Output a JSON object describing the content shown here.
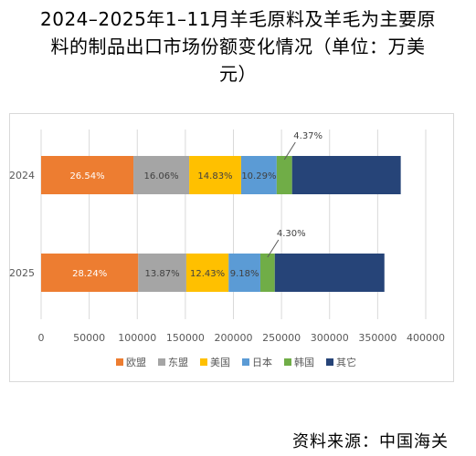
{
  "page": {
    "title_line1": "2024–2025年1–11月羊毛原料及羊毛为主要原",
    "title_line2": "料的制品出口市场份额变化情况（单位：万美",
    "title_line3": "元）",
    "source": "资料来源：中国海关"
  },
  "chart_data": {
    "type": "bar",
    "orientation": "horizontal",
    "stacked": true,
    "title": "",
    "xlabel": "",
    "ylabel": "",
    "xlim": [
      0,
      400000
    ],
    "x_ticks": [
      "0",
      "50000",
      "100000",
      "150000",
      "200000",
      "250000",
      "300000",
      "350000",
      "400000"
    ],
    "x_tick_values": [
      0,
      50000,
      100000,
      150000,
      200000,
      250000,
      300000,
      350000,
      400000
    ],
    "categories": [
      "2024",
      "2025"
    ],
    "grid": true,
    "legend_position": "bottom",
    "series": [
      {
        "name": "欧盟",
        "color": "#ED7D31",
        "values": [
          96000,
          101000
        ],
        "labels": [
          "26.54%",
          "28.24%"
        ]
      },
      {
        "name": "东盟",
        "color": "#A5A5A5",
        "values": [
          58000,
          50000
        ],
        "labels": [
          "16.06%",
          "13.87%"
        ]
      },
      {
        "name": "美国",
        "color": "#FFC000",
        "values": [
          54000,
          44000
        ],
        "labels": [
          "14.83%",
          "12.43%"
        ]
      },
      {
        "name": "日本",
        "color": "#5B9BD5",
        "values": [
          37000,
          33000
        ],
        "labels": [
          "10.29%",
          "9.18%"
        ]
      },
      {
        "name": "韩国",
        "color": "#70AD47",
        "values": [
          16000,
          15000
        ],
        "labels": [
          "4.37%",
          "4.30%"
        ]
      },
      {
        "name": "其它",
        "color": "#264478",
        "values": [
          113000,
          114000
        ],
        "labels": [
          "",
          ""
        ]
      }
    ],
    "callout_series_index": 4
  }
}
